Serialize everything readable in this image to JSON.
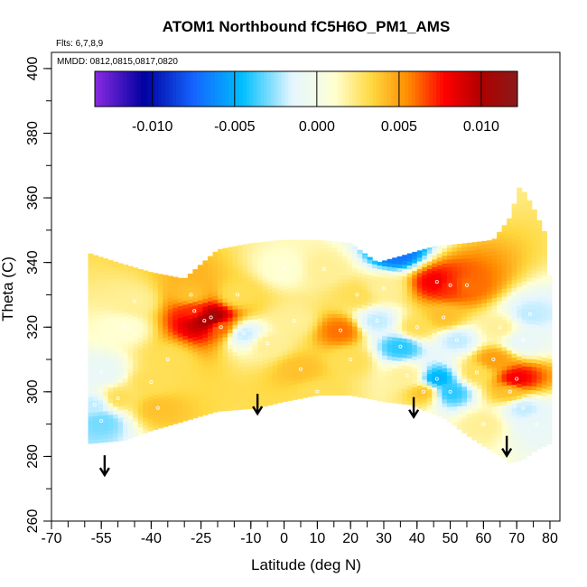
{
  "chart_data": {
    "type": "heatmap",
    "title": "ATOM1 Northbound fC5H6O_PM1_AMS",
    "notes": [
      "Flts: 6,7,8,9",
      "MMDD: 0812,0815,0817,0820"
    ],
    "xlabel": "Latitude (deg N)",
    "ylabel": "Theta (C)",
    "xlim": [
      -70,
      83
    ],
    "ylim": [
      260,
      405
    ],
    "x_ticks": [
      "-70",
      "-55",
      "-40",
      "-25",
      "-10",
      "0",
      "10",
      "20",
      "30",
      "40",
      "50",
      "60",
      "70",
      "80"
    ],
    "x_tick_values": [
      -70,
      -55,
      -40,
      -25,
      -10,
      0,
      10,
      20,
      30,
      40,
      50,
      60,
      70,
      80
    ],
    "y_ticks": [
      "260",
      "280",
      "300",
      "320",
      "340",
      "360",
      "380",
      "400"
    ],
    "y_tick_values": [
      260,
      280,
      300,
      320,
      340,
      360,
      380,
      400
    ],
    "colorbar": {
      "ticks": [
        "-0.010",
        "-0.005",
        "0.000",
        "0.005",
        "0.010"
      ],
      "tick_values": [
        -0.01,
        -0.005,
        0.0,
        0.005,
        0.01
      ],
      "range": [
        -0.0135,
        0.0122
      ],
      "colors": [
        "#8a2be2",
        "#0000a0",
        "#1464ff",
        "#00bfff",
        "#e6f6ff",
        "#ffffd0",
        "#ffd940",
        "#ff8c00",
        "#ff0000",
        "#b00000",
        "#8b1a1a"
      ]
    },
    "domain_top": [
      [
        -59,
        343
      ],
      [
        -50,
        340
      ],
      [
        -40,
        337
      ],
      [
        -30,
        335
      ],
      [
        -20,
        344
      ],
      [
        -10,
        346
      ],
      [
        0,
        347
      ],
      [
        10,
        347
      ],
      [
        20,
        346
      ],
      [
        28,
        340
      ],
      [
        35,
        342
      ],
      [
        45,
        345
      ],
      [
        55,
        346
      ],
      [
        63,
        347
      ],
      [
        68,
        354
      ],
      [
        71,
        364
      ],
      [
        75,
        357
      ],
      [
        79,
        348
      ],
      [
        80,
        332
      ]
    ],
    "domain_bottom": [
      [
        -59,
        284
      ],
      [
        -48,
        285
      ],
      [
        -40,
        288
      ],
      [
        -30,
        291
      ],
      [
        -20,
        294
      ],
      [
        -8,
        295
      ],
      [
        0,
        297
      ],
      [
        10,
        299
      ],
      [
        20,
        299
      ],
      [
        30,
        297
      ],
      [
        38,
        296
      ],
      [
        48,
        292
      ],
      [
        56,
        286
      ],
      [
        62,
        282
      ],
      [
        68,
        278
      ],
      [
        72,
        279
      ],
      [
        76,
        282
      ],
      [
        80,
        284
      ]
    ],
    "cells": [
      {
        "lat": -24,
        "theta": 322,
        "value": 0.01
      },
      {
        "lat": -22,
        "theta": 323,
        "value": 0.011
      },
      {
        "lat": -27,
        "theta": 325,
        "value": 0.007
      },
      {
        "lat": -19,
        "theta": 320,
        "value": 0.006
      },
      {
        "lat": -28,
        "theta": 330,
        "value": 0.004
      },
      {
        "lat": -35,
        "theta": 310,
        "value": 0.003
      },
      {
        "lat": -40,
        "theta": 303,
        "value": 0.003
      },
      {
        "lat": -38,
        "theta": 295,
        "value": 0.004
      },
      {
        "lat": -50,
        "theta": 298,
        "value": 0.003
      },
      {
        "lat": -55,
        "theta": 291,
        "value": -0.003
      },
      {
        "lat": -57,
        "theta": 296,
        "value": -0.002
      },
      {
        "lat": -55,
        "theta": 306,
        "value": -0.001
      },
      {
        "lat": -48,
        "theta": 320,
        "value": 0.001
      },
      {
        "lat": -14,
        "theta": 330,
        "value": 0.003
      },
      {
        "lat": -12,
        "theta": 318,
        "value": -0.002
      },
      {
        "lat": -5,
        "theta": 315,
        "value": 0.002
      },
      {
        "lat": 3,
        "theta": 322,
        "value": 0.002
      },
      {
        "lat": 5,
        "theta": 307,
        "value": 0.004
      },
      {
        "lat": 10,
        "theta": 300,
        "value": 0.003
      },
      {
        "lat": 17,
        "theta": 319,
        "value": 0.006
      },
      {
        "lat": 20,
        "theta": 310,
        "value": 0.003
      },
      {
        "lat": 22,
        "theta": 330,
        "value": 0.003
      },
      {
        "lat": 28,
        "theta": 322,
        "value": -0.002
      },
      {
        "lat": 30,
        "theta": 332,
        "value": 0.002
      },
      {
        "lat": 35,
        "theta": 314,
        "value": -0.004
      },
      {
        "lat": 37,
        "theta": 305,
        "value": 0.002
      },
      {
        "lat": 40,
        "theta": 320,
        "value": 0.003
      },
      {
        "lat": 42,
        "theta": 300,
        "value": 0.004
      },
      {
        "lat": 34,
        "theta": 343,
        "value": -0.007
      },
      {
        "lat": 46,
        "theta": 334,
        "value": 0.008
      },
      {
        "lat": 50,
        "theta": 333,
        "value": 0.007
      },
      {
        "lat": 55,
        "theta": 333,
        "value": 0.006
      },
      {
        "lat": 48,
        "theta": 323,
        "value": 0.004
      },
      {
        "lat": 46,
        "theta": 304,
        "value": -0.005
      },
      {
        "lat": 50,
        "theta": 300,
        "value": -0.004
      },
      {
        "lat": 52,
        "theta": 316,
        "value": -0.002
      },
      {
        "lat": 58,
        "theta": 306,
        "value": 0.003
      },
      {
        "lat": 63,
        "theta": 310,
        "value": 0.005
      },
      {
        "lat": 70,
        "theta": 304,
        "value": 0.008
      },
      {
        "lat": 68,
        "theta": 300,
        "value": 0.004
      },
      {
        "lat": 72,
        "theta": 316,
        "value": -0.001
      },
      {
        "lat": 74,
        "theta": 324,
        "value": -0.002
      },
      {
        "lat": 72,
        "theta": 295,
        "value": -0.002
      },
      {
        "lat": 76,
        "theta": 290,
        "value": -0.001
      },
      {
        "lat": 65,
        "theta": 320,
        "value": 0.002
      },
      {
        "lat": 60,
        "theta": 290,
        "value": 0.002
      },
      {
        "lat": -45,
        "theta": 328,
        "value": 0.002
      },
      {
        "lat": 0,
        "theta": 338,
        "value": 0.001
      },
      {
        "lat": 12,
        "theta": 338,
        "value": 0.002
      }
    ],
    "arrows": [
      {
        "lat": -54,
        "theta": 277
      },
      {
        "lat": -8,
        "theta": 296
      },
      {
        "lat": 39,
        "theta": 295
      },
      {
        "lat": 67,
        "theta": 283
      }
    ]
  }
}
